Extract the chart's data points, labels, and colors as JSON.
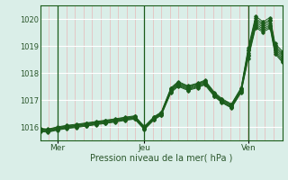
{
  "xlabel": "Pression niveau de la mer( hPa )",
  "bg_color": "#daeee8",
  "grid_h_color": "#ffffff",
  "grid_v_color": "#e8b8b8",
  "line_color": "#1a5c1a",
  "ylim": [
    1015.5,
    1020.5
  ],
  "yticks": [
    1016,
    1017,
    1018,
    1019,
    1020
  ],
  "xtick_labels": [
    "Mer",
    "Jeu",
    "Ven"
  ],
  "xtick_positions": [
    0.07,
    0.43,
    0.86
  ],
  "vline_positions": [
    0.07,
    0.43,
    0.86
  ],
  "n_minor_v": 28,
  "series": [
    [
      0.0,
      1015.95,
      0.03,
      1015.92,
      0.07,
      1016.0,
      0.11,
      1016.06,
      0.15,
      1016.1,
      0.19,
      1016.15,
      0.23,
      1016.2,
      0.27,
      1016.25,
      0.31,
      1016.3,
      0.35,
      1016.36,
      0.39,
      1016.41,
      0.43,
      1016.02,
      0.47,
      1016.38,
      0.5,
      1016.55,
      0.54,
      1017.45,
      0.57,
      1017.68,
      0.61,
      1017.52,
      0.65,
      1017.62,
      0.68,
      1017.73,
      0.72,
      1017.28,
      0.75,
      1017.05,
      0.79,
      1016.85,
      0.83,
      1017.45,
      0.86,
      1018.95,
      0.89,
      1020.1,
      0.92,
      1019.9,
      0.95,
      1020.05,
      0.97,
      1019.1,
      1.0,
      1018.8
    ],
    [
      0.0,
      1015.93,
      0.03,
      1015.9,
      0.07,
      1015.98,
      0.11,
      1016.04,
      0.15,
      1016.08,
      0.19,
      1016.13,
      0.23,
      1016.18,
      0.27,
      1016.23,
      0.31,
      1016.28,
      0.35,
      1016.34,
      0.39,
      1016.39,
      0.43,
      1016.0,
      0.47,
      1016.36,
      0.5,
      1016.53,
      0.54,
      1017.42,
      0.57,
      1017.65,
      0.61,
      1017.5,
      0.65,
      1017.6,
      0.68,
      1017.7,
      0.72,
      1017.25,
      0.75,
      1017.02,
      0.79,
      1016.82,
      0.83,
      1017.42,
      0.86,
      1018.88,
      0.89,
      1020.02,
      0.92,
      1019.83,
      0.95,
      1019.98,
      0.97,
      1019.03,
      1.0,
      1018.72
    ],
    [
      0.0,
      1015.91,
      0.03,
      1015.88,
      0.07,
      1015.96,
      0.11,
      1016.02,
      0.15,
      1016.06,
      0.19,
      1016.11,
      0.23,
      1016.16,
      0.27,
      1016.21,
      0.31,
      1016.26,
      0.35,
      1016.32,
      0.39,
      1016.37,
      0.43,
      1015.98,
      0.47,
      1016.34,
      0.5,
      1016.51,
      0.54,
      1017.39,
      0.57,
      1017.62,
      0.61,
      1017.47,
      0.65,
      1017.57,
      0.68,
      1017.68,
      0.72,
      1017.22,
      0.75,
      1017.0,
      0.79,
      1016.8,
      0.83,
      1017.39,
      0.86,
      1018.82,
      0.89,
      1019.95,
      0.92,
      1019.77,
      0.95,
      1019.92,
      0.97,
      1018.97,
      1.0,
      1018.65
    ],
    [
      0.0,
      1015.89,
      0.03,
      1015.86,
      0.07,
      1015.94,
      0.11,
      1016.0,
      0.15,
      1016.04,
      0.19,
      1016.09,
      0.23,
      1016.14,
      0.27,
      1016.19,
      0.31,
      1016.24,
      0.35,
      1016.3,
      0.39,
      1016.35,
      0.43,
      1015.96,
      0.47,
      1016.32,
      0.5,
      1016.49,
      0.54,
      1017.36,
      0.57,
      1017.59,
      0.61,
      1017.44,
      0.65,
      1017.54,
      0.68,
      1017.65,
      0.72,
      1017.2,
      0.75,
      1016.97,
      0.79,
      1016.77,
      0.83,
      1017.36,
      0.86,
      1018.75,
      0.89,
      1019.88,
      0.92,
      1019.7,
      0.95,
      1019.85,
      0.97,
      1018.9,
      1.0,
      1018.58
    ],
    [
      0.0,
      1015.87,
      0.03,
      1015.84,
      0.07,
      1015.92,
      0.11,
      1015.98,
      0.15,
      1016.02,
      0.19,
      1016.07,
      0.23,
      1016.12,
      0.27,
      1016.17,
      0.31,
      1016.22,
      0.35,
      1016.28,
      0.39,
      1016.33,
      0.43,
      1015.94,
      0.47,
      1016.3,
      0.5,
      1016.47,
      0.54,
      1017.33,
      0.57,
      1017.56,
      0.61,
      1017.41,
      0.65,
      1017.51,
      0.68,
      1017.62,
      0.72,
      1017.17,
      0.75,
      1016.94,
      0.79,
      1016.74,
      0.83,
      1017.33,
      0.86,
      1018.68,
      0.89,
      1019.81,
      0.92,
      1019.63,
      0.95,
      1019.78,
      0.97,
      1018.83,
      1.0,
      1018.51
    ],
    [
      0.0,
      1015.85,
      0.03,
      1015.82,
      0.07,
      1015.9,
      0.11,
      1015.96,
      0.15,
      1016.0,
      0.19,
      1016.05,
      0.23,
      1016.1,
      0.27,
      1016.15,
      0.31,
      1016.2,
      0.35,
      1016.26,
      0.39,
      1016.31,
      0.43,
      1015.92,
      0.47,
      1016.28,
      0.5,
      1016.45,
      0.54,
      1017.3,
      0.57,
      1017.53,
      0.61,
      1017.38,
      0.65,
      1017.48,
      0.68,
      1017.59,
      0.72,
      1017.15,
      0.75,
      1016.92,
      0.79,
      1016.72,
      0.83,
      1017.3,
      0.86,
      1018.62,
      0.89,
      1019.74,
      0.92,
      1019.57,
      0.95,
      1019.72,
      0.97,
      1018.77,
      1.0,
      1018.45
    ],
    [
      0.0,
      1015.83,
      0.03,
      1015.8,
      0.07,
      1015.88,
      0.11,
      1015.94,
      0.15,
      1015.98,
      0.19,
      1016.03,
      0.23,
      1016.08,
      0.27,
      1016.13,
      0.31,
      1016.18,
      0.35,
      1016.24,
      0.39,
      1016.29,
      0.43,
      1015.9,
      0.47,
      1016.26,
      0.5,
      1016.43,
      0.54,
      1017.27,
      0.57,
      1017.5,
      0.61,
      1017.35,
      0.65,
      1017.45,
      0.68,
      1017.56,
      0.72,
      1017.12,
      0.75,
      1016.9,
      0.79,
      1016.7,
      0.83,
      1017.27,
      0.86,
      1018.55,
      0.89,
      1019.68,
      0.92,
      1019.51,
      0.95,
      1019.66,
      0.97,
      1018.71,
      1.0,
      1018.4
    ]
  ]
}
